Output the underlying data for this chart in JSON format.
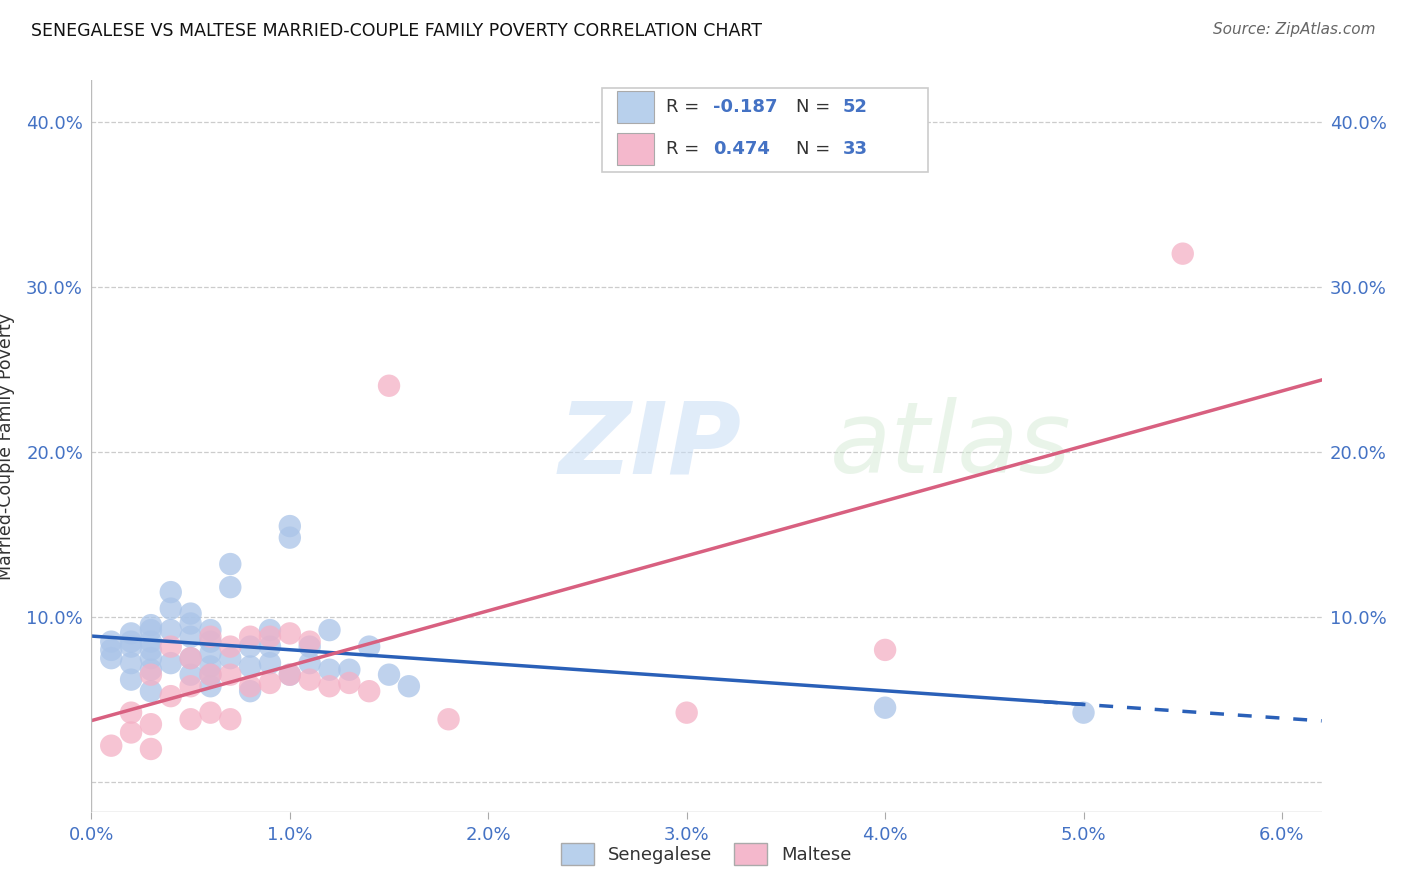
{
  "title": "SENEGALESE VS MALTESE MARRIED-COUPLE FAMILY POVERTY CORRELATION CHART",
  "source": "Source: ZipAtlas.com",
  "ylabel": "Married-Couple Family Poverty",
  "xlim": [
    0.0,
    0.062
  ],
  "ylim": [
    -0.018,
    0.425
  ],
  "xticks": [
    0.0,
    0.01,
    0.02,
    0.03,
    0.04,
    0.05,
    0.06
  ],
  "yticks": [
    0.0,
    0.1,
    0.2,
    0.3,
    0.4
  ],
  "ytick_labels_left": [
    "",
    "10.0%",
    "20.0%",
    "30.0%",
    "40.0%"
  ],
  "ytick_labels_right": [
    "",
    "10.0%",
    "20.0%",
    "30.0%",
    "40.0%"
  ],
  "xtick_labels": [
    "0.0%",
    "1.0%",
    "2.0%",
    "3.0%",
    "4.0%",
    "5.0%",
    "6.0%"
  ],
  "sen_color": "#aac4e8",
  "mal_color": "#f4b0c5",
  "sen_line_color": "#2a60b8",
  "mal_line_color": "#d86080",
  "leg_blue": "#b8d0ec",
  "leg_pink": "#f4b8cc",
  "R_sen": "-0.187",
  "N_sen": "52",
  "R_mal": "0.474",
  "N_mal": "33",
  "bg_color": "#ffffff",
  "grid_color": "#cccccc",
  "axis_color": "#4472c4",
  "title_color": "#111111",
  "sen_x": [
    0.001,
    0.001,
    0.001,
    0.002,
    0.002,
    0.002,
    0.002,
    0.002,
    0.003,
    0.003,
    0.003,
    0.003,
    0.003,
    0.003,
    0.003,
    0.004,
    0.004,
    0.004,
    0.004,
    0.005,
    0.005,
    0.005,
    0.005,
    0.005,
    0.006,
    0.006,
    0.006,
    0.006,
    0.006,
    0.006,
    0.007,
    0.007,
    0.007,
    0.008,
    0.008,
    0.008,
    0.009,
    0.009,
    0.009,
    0.01,
    0.01,
    0.01,
    0.011,
    0.011,
    0.012,
    0.012,
    0.013,
    0.014,
    0.015,
    0.016,
    0.04,
    0.05
  ],
  "sen_y": [
    0.085,
    0.08,
    0.075,
    0.09,
    0.085,
    0.082,
    0.072,
    0.062,
    0.095,
    0.092,
    0.085,
    0.08,
    0.075,
    0.068,
    0.055,
    0.115,
    0.105,
    0.092,
    0.072,
    0.102,
    0.096,
    0.088,
    0.075,
    0.065,
    0.092,
    0.085,
    0.078,
    0.07,
    0.065,
    0.058,
    0.132,
    0.118,
    0.075,
    0.082,
    0.07,
    0.055,
    0.092,
    0.082,
    0.072,
    0.155,
    0.148,
    0.065,
    0.082,
    0.072,
    0.092,
    0.068,
    0.068,
    0.082,
    0.065,
    0.058,
    0.045,
    0.042
  ],
  "mal_x": [
    0.001,
    0.002,
    0.002,
    0.003,
    0.003,
    0.003,
    0.004,
    0.004,
    0.005,
    0.005,
    0.005,
    0.006,
    0.006,
    0.006,
    0.007,
    0.007,
    0.007,
    0.008,
    0.008,
    0.009,
    0.009,
    0.01,
    0.01,
    0.011,
    0.011,
    0.012,
    0.013,
    0.014,
    0.015,
    0.018,
    0.03,
    0.04,
    0.055
  ],
  "mal_y": [
    0.022,
    0.042,
    0.03,
    0.065,
    0.035,
    0.02,
    0.082,
    0.052,
    0.075,
    0.058,
    0.038,
    0.088,
    0.065,
    0.042,
    0.082,
    0.065,
    0.038,
    0.088,
    0.058,
    0.088,
    0.06,
    0.09,
    0.065,
    0.085,
    0.062,
    0.058,
    0.06,
    0.055,
    0.24,
    0.038,
    0.042,
    0.08,
    0.32
  ]
}
